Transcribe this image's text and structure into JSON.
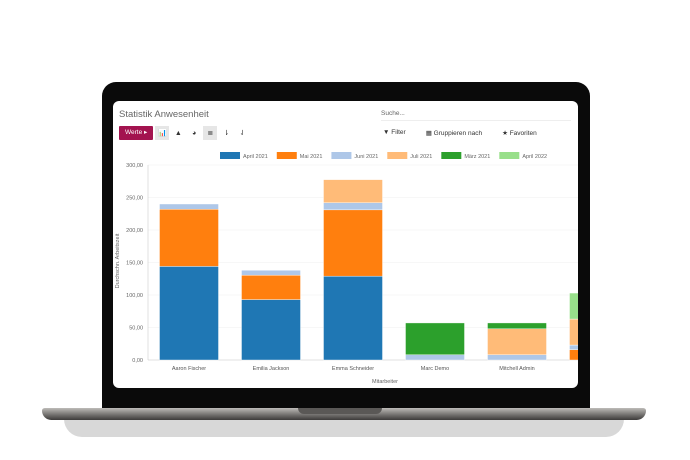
{
  "app": {
    "title": "Statistik Anwesenheit",
    "search_placeholder": "Suche..."
  },
  "toolbar": {
    "measures_label": "Werte ▸",
    "views": [
      {
        "icon": "bar-chart-icon",
        "glyph": "📊",
        "active": true
      },
      {
        "icon": "line-chart-icon",
        "glyph": "▲",
        "active": false
      },
      {
        "icon": "pie-chart-icon",
        "glyph": "◕",
        "active": false
      },
      {
        "icon": "stack-icon",
        "glyph": "≣",
        "active": true
      },
      {
        "icon": "sort-descending-icon",
        "glyph": "⇂",
        "active": false
      },
      {
        "icon": "sort-ascending-icon",
        "glyph": "⇃",
        "active": false
      }
    ],
    "filter_label": "▼ Filter",
    "group_label": "▦ Gruppieren nach",
    "favorites_label": "★ Favoriten"
  },
  "chart_data": {
    "type": "bar",
    "stacked": true,
    "xlabel": "Mitarbeiter",
    "ylabel": "Durchschn. Arbeitszeit",
    "ylim": [
      0,
      300
    ],
    "yticks": [
      "0,00",
      "50,00",
      "100,00",
      "150,00",
      "200,00",
      "250,00",
      "300,00"
    ],
    "legend_position": "top",
    "categories": [
      "Aaron Fischer",
      "Emilia Jackson",
      "Emma Schneider",
      "Marc Demo",
      "Mitchell Admin",
      ""
    ],
    "series": [
      {
        "name": "April 2021",
        "color": "#1f77b4",
        "values": [
          144,
          93,
          129,
          0,
          0,
          0
        ]
      },
      {
        "name": "Mai 2021",
        "color": "#ff7f0e",
        "values": [
          88,
          37.5,
          102,
          0,
          0,
          16
        ]
      },
      {
        "name": "Juni 2021",
        "color": "#aec7e8",
        "values": [
          8,
          7.5,
          11,
          8,
          8,
          7
        ]
      },
      {
        "name": "Juli 2021",
        "color": "#ffbb78",
        "values": [
          0,
          0,
          35.5,
          0,
          40,
          40
        ]
      },
      {
        "name": "März 2021",
        "color": "#2ca02c",
        "values": [
          0,
          0,
          0,
          49,
          9,
          0
        ]
      },
      {
        "name": "April 2022",
        "color": "#98df8a",
        "values": [
          0,
          0,
          0,
          0,
          0,
          40
        ]
      }
    ]
  }
}
